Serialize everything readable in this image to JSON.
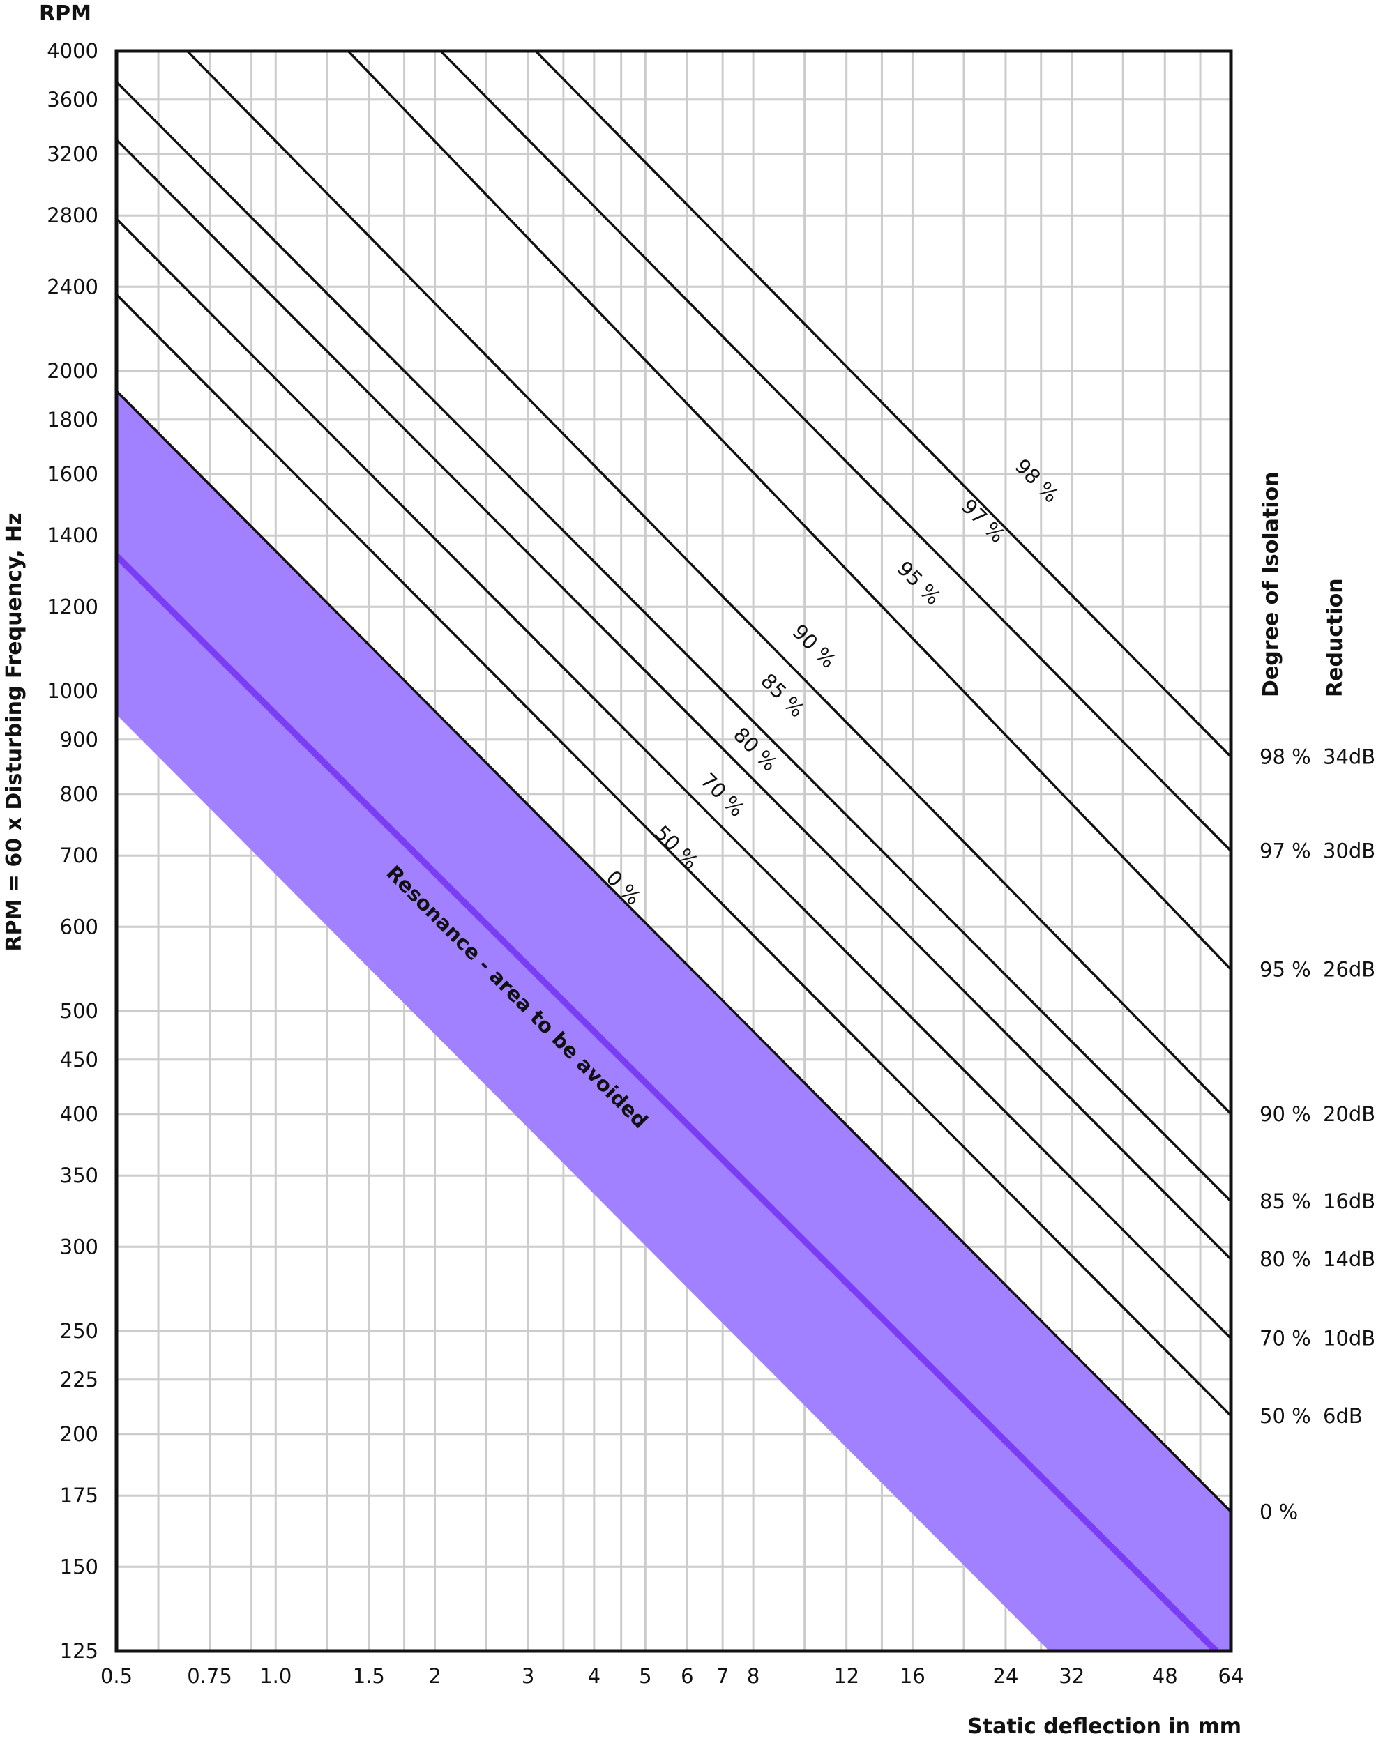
{
  "chart_data": {
    "type": "line",
    "title": "",
    "y_axis_top_label": "RPM",
    "ylabel": "RPM = 60 x Disturbing Frequency, Hz",
    "xlabel": "Static deflection in mm",
    "x_scale": "log",
    "y_scale": "log",
    "xlim": [
      0.5,
      64
    ],
    "ylim": [
      125,
      4000
    ],
    "grid": true,
    "x_ticks": [
      {
        "value": 0.5,
        "label": "0.5"
      },
      {
        "value": 0.75,
        "label": "0.75"
      },
      {
        "value": 1.0,
        "label": "1.0"
      },
      {
        "value": 1.5,
        "label": "1.5"
      },
      {
        "value": 2,
        "label": "2"
      },
      {
        "value": 3,
        "label": "3"
      },
      {
        "value": 4,
        "label": "4"
      },
      {
        "value": 5,
        "label": "5"
      },
      {
        "value": 6,
        "label": "6"
      },
      {
        "value": 7,
        "label": "7"
      },
      {
        "value": 8,
        "label": "8"
      },
      {
        "value": 12,
        "label": "12"
      },
      {
        "value": 16,
        "label": "16"
      },
      {
        "value": 24,
        "label": "24"
      },
      {
        "value": 32,
        "label": "32"
      },
      {
        "value": 48,
        "label": "48"
      },
      {
        "value": 64,
        "label": "64"
      }
    ],
    "x_grid": [
      0.5,
      0.6,
      0.75,
      0.9,
      1.0,
      1.25,
      1.5,
      1.75,
      2,
      2.5,
      3,
      3.5,
      4,
      4.5,
      5,
      6,
      7,
      8,
      10,
      12,
      14,
      16,
      20,
      24,
      28,
      32,
      40,
      48,
      56,
      64
    ],
    "y_ticks": [
      4000,
      3600,
      3200,
      2800,
      2400,
      2000,
      1800,
      1600,
      1400,
      1200,
      1000,
      900,
      800,
      700,
      600,
      500,
      450,
      400,
      350,
      300,
      250,
      225,
      200,
      175,
      150,
      125
    ],
    "y_grid": [
      4000,
      3600,
      3200,
      2800,
      2400,
      2000,
      1800,
      1600,
      1400,
      1200,
      1000,
      900,
      800,
      700,
      600,
      500,
      450,
      400,
      350,
      300,
      250,
      225,
      200,
      175,
      150,
      125
    ],
    "series": [
      {
        "name": "0 %",
        "x": [
          0.5,
          64
        ],
        "y": [
          1915,
          169
        ]
      },
      {
        "name": "50 %",
        "x": [
          0.5,
          64
        ],
        "y": [
          2360,
          208
        ]
      },
      {
        "name": "70 %",
        "x": [
          0.5,
          64
        ],
        "y": [
          2780,
          246
        ]
      },
      {
        "name": "80 %",
        "x": [
          0.5,
          64
        ],
        "y": [
          3300,
          292
        ]
      },
      {
        "name": "85 %",
        "x": [
          0.5,
          64
        ],
        "y": [
          3740,
          331
        ]
      },
      {
        "name": "90 %",
        "x": [
          0.68,
          64
        ],
        "y": [
          4000,
          400
        ]
      },
      {
        "name": "95 %",
        "x": [
          1.37,
          64
        ],
        "y": [
          4000,
          547
        ]
      },
      {
        "name": "97 %",
        "x": [
          2.05,
          64
        ],
        "y": [
          4000,
          707
        ]
      },
      {
        "name": "98 %",
        "x": [
          3.1,
          64
        ],
        "y": [
          4000,
          867
        ]
      }
    ],
    "curve_labels": [
      {
        "text": "0 %",
        "x": 4.45,
        "y": 646
      },
      {
        "text": "50 %",
        "x": 5.6,
        "y": 705
      },
      {
        "text": "70 %",
        "x": 6.85,
        "y": 790
      },
      {
        "text": "80 %",
        "x": 7.9,
        "y": 872
      },
      {
        "text": "85 %",
        "x": 8.9,
        "y": 980
      },
      {
        "text": "90 %",
        "x": 10.2,
        "y": 1090
      },
      {
        "text": "95 %",
        "x": 16.1,
        "y": 1250
      },
      {
        "text": "97 %",
        "x": 21.3,
        "y": 1430
      },
      {
        "text": "98 %",
        "x": 26.9,
        "y": 1560
      }
    ],
    "resonance": {
      "label": "Resonance - area to be avoided",
      "centerline": {
        "x": [
          0.5,
          60
        ],
        "y": [
          1340,
          125
        ]
      },
      "band_upper": {
        "x": [
          0.5,
          64
        ],
        "y": [
          1915,
          169
        ]
      },
      "band_lower": {
        "x": [
          0.5,
          29
        ],
        "y": [
          950,
          125
        ]
      },
      "label_position": {
        "x": 2.8,
        "y": 510
      },
      "band_color": "#a181ff",
      "line_color": "#7a3cf5"
    },
    "right_panel": {
      "header_isolation": "Degree of Isolation",
      "header_reduction": "Reduction",
      "rows": [
        {
          "isolation": "98 %",
          "reduction": "34dB",
          "y": 867
        },
        {
          "isolation": "97 %",
          "reduction": "30dB",
          "y": 707
        },
        {
          "isolation": "95 %",
          "reduction": "26dB",
          "y": 547
        },
        {
          "isolation": "90 %",
          "reduction": "20dB",
          "y": 400
        },
        {
          "isolation": "85 %",
          "reduction": "16dB",
          "y": 331
        },
        {
          "isolation": "80 %",
          "reduction": "14dB",
          "y": 292
        },
        {
          "isolation": "70 %",
          "reduction": "10dB",
          "y": 246
        },
        {
          "isolation": "50 %",
          "reduction": "6dB",
          "y": 208
        },
        {
          "isolation": "0 %",
          "reduction": "",
          "y": 169
        }
      ]
    },
    "colors": {
      "grid": "#cccccc",
      "frame": "#111111",
      "curve": "#111111"
    }
  }
}
